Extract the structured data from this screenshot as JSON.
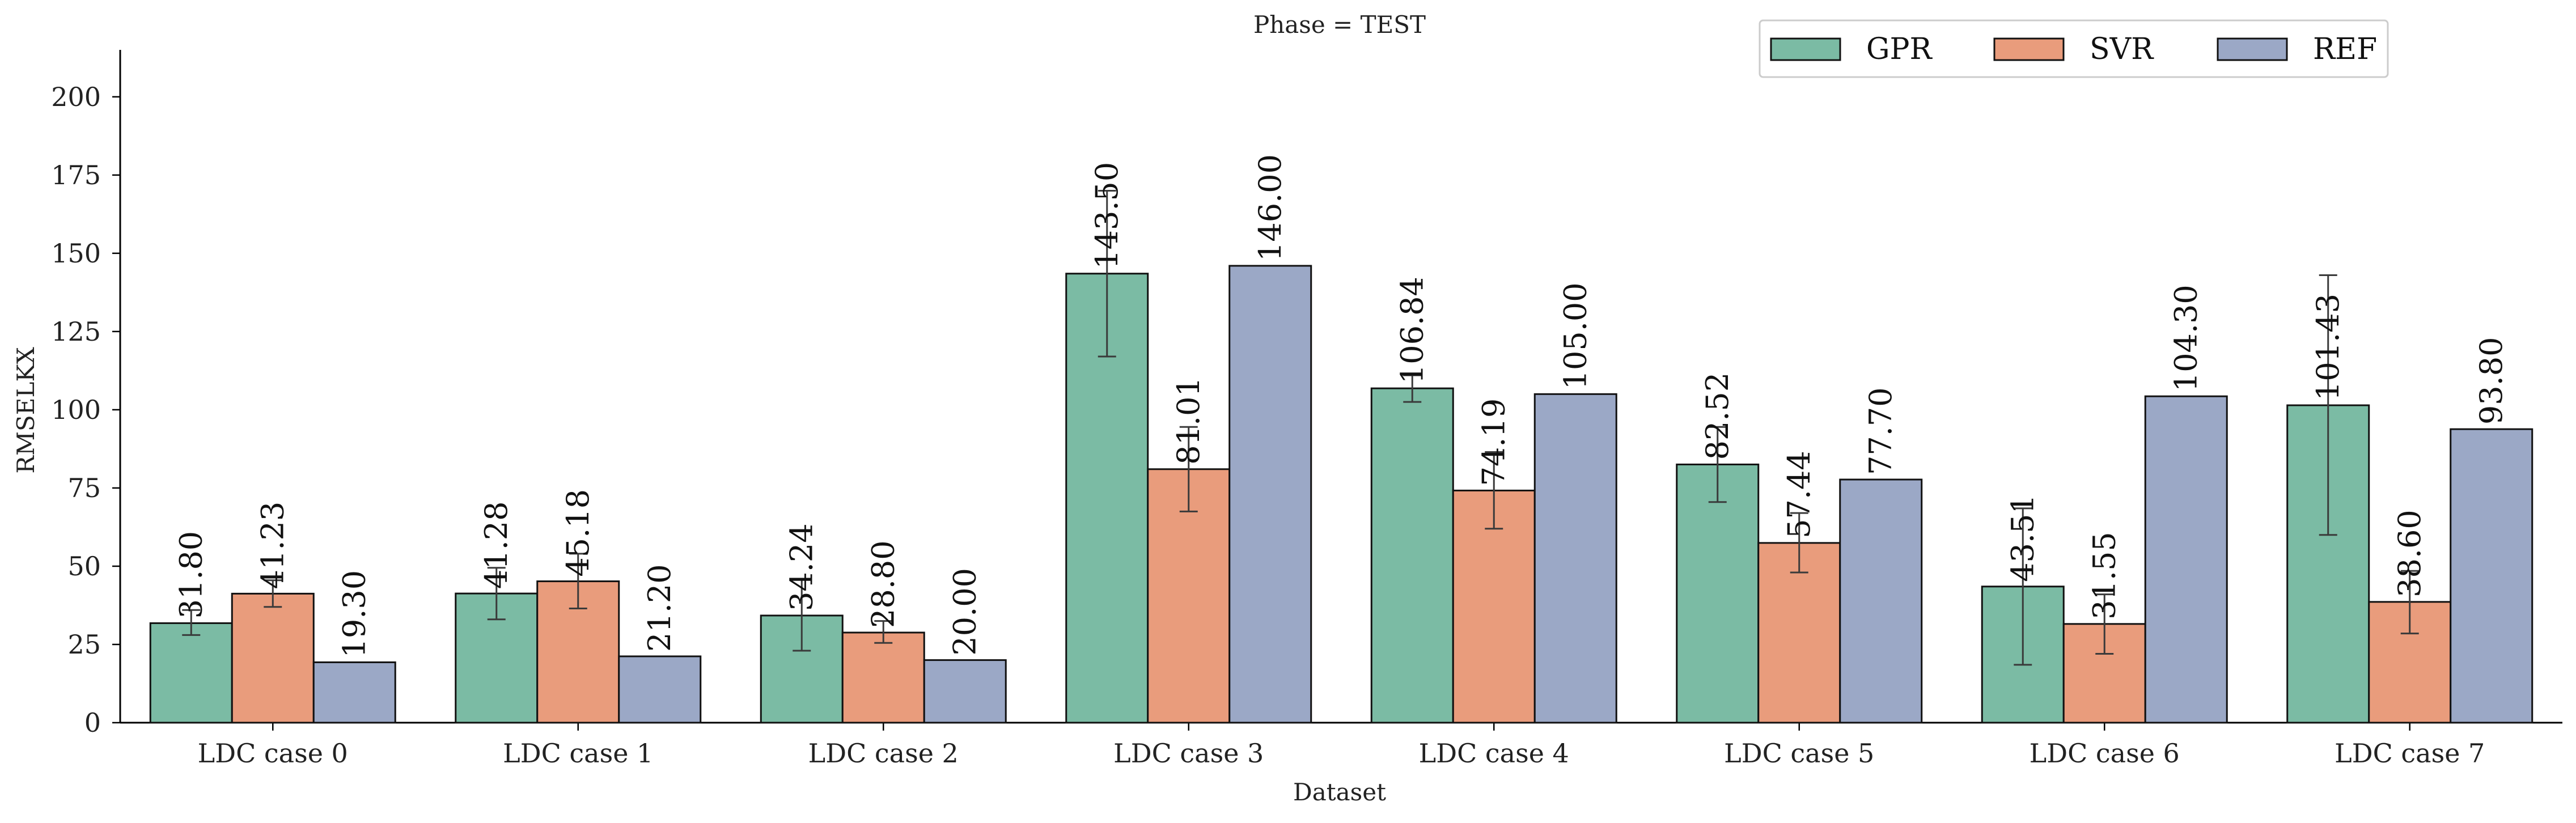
{
  "chart_data": {
    "type": "bar",
    "title": "Phase = TEST",
    "xlabel": "Dataset",
    "ylabel": "RMSELKX",
    "ylim": [
      0,
      215
    ],
    "yticks": [
      0,
      25,
      50,
      75,
      100,
      125,
      150,
      175,
      200
    ],
    "categories": [
      "LDC case 0",
      "LDC case 1",
      "LDC case 2",
      "LDC case 3",
      "LDC case 4",
      "LDC case 5",
      "LDC case 6",
      "LDC case 7"
    ],
    "series": [
      {
        "name": "GPR",
        "color": "#7bbba4",
        "values": [
          31.8,
          41.28,
          34.24,
          143.5,
          106.84,
          82.52,
          43.51,
          101.43
        ],
        "labels": [
          "31.80",
          "41.28",
          "34.24",
          "143.50",
          "106.84",
          "82.52",
          "43.51",
          "101.43"
        ],
        "error": [
          [
            28,
            36
          ],
          [
            33,
            49.5
          ],
          [
            23,
            46
          ],
          [
            117,
            170
          ],
          [
            102.5,
            111
          ],
          [
            70.5,
            94.5
          ],
          [
            18.5,
            68.5
          ],
          [
            60,
            143
          ]
        ]
      },
      {
        "name": "SVR",
        "color": "#e99c7c",
        "values": [
          41.23,
          45.18,
          28.8,
          81.01,
          74.19,
          57.44,
          31.55,
          38.6
        ],
        "labels": [
          "41.23",
          "45.18",
          "28.80",
          "81.01",
          "74.19",
          "57.44",
          "31.55",
          "38.60"
        ],
        "error": [
          [
            37,
            45.5
          ],
          [
            36.5,
            54
          ],
          [
            25.5,
            32.5
          ],
          [
            67.5,
            94.5
          ],
          [
            62,
            86.5
          ],
          [
            48,
            67
          ],
          [
            22,
            41
          ],
          [
            28.5,
            48.5
          ]
        ]
      },
      {
        "name": "REF",
        "color": "#9ba8c6",
        "values": [
          19.3,
          21.2,
          20.0,
          146.0,
          105.0,
          77.7,
          104.3,
          93.8
        ],
        "labels": [
          "19.30",
          "21.20",
          "20.00",
          "146.00",
          "105.00",
          "77.70",
          "104.30",
          "93.80"
        ],
        "error": null
      }
    ],
    "legend_position": "top-right",
    "grid": false
  }
}
